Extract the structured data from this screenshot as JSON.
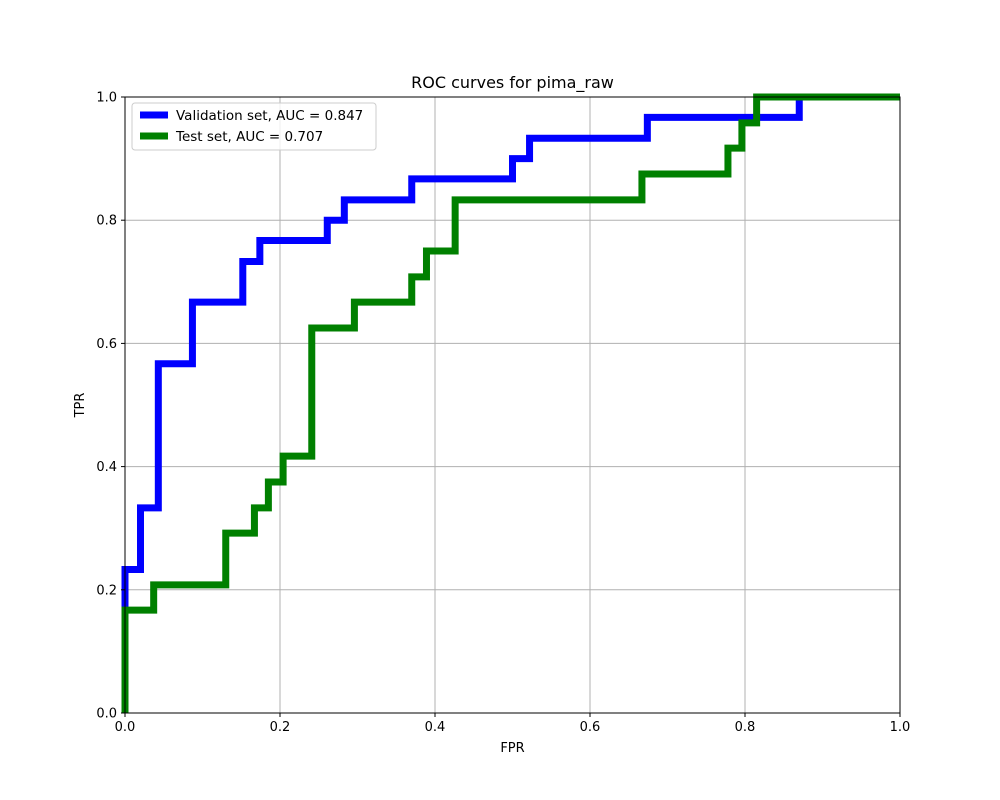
{
  "chart_data": {
    "type": "line",
    "title": "ROC curves for pima_raw",
    "xlabel": "FPR",
    "ylabel": "TPR",
    "xlim": [
      0,
      1
    ],
    "ylim": [
      0,
      1
    ],
    "xticks": [
      "0.0",
      "0.2",
      "0.4",
      "0.6",
      "0.8",
      "1.0"
    ],
    "yticks": [
      "0.0",
      "0.2",
      "0.4",
      "0.6",
      "0.8",
      "1.0"
    ],
    "grid": true,
    "legend_position": "top-left",
    "series": [
      {
        "name": "Validation set, AUC = 0.847",
        "color": "#0000ff",
        "x": [
          0.0,
          0.0,
          0.02,
          0.02,
          0.043,
          0.043,
          0.087,
          0.087,
          0.152,
          0.152,
          0.174,
          0.174,
          0.261,
          0.261,
          0.283,
          0.283,
          0.37,
          0.37,
          0.5,
          0.5,
          0.522,
          0.522,
          0.674,
          0.674,
          0.87,
          0.87,
          1.0
        ],
        "y": [
          0.0,
          0.233,
          0.233,
          0.333,
          0.333,
          0.567,
          0.567,
          0.667,
          0.667,
          0.733,
          0.733,
          0.767,
          0.767,
          0.8,
          0.8,
          0.833,
          0.833,
          0.867,
          0.867,
          0.9,
          0.9,
          0.933,
          0.933,
          0.967,
          0.967,
          1.0,
          1.0
        ]
      },
      {
        "name": "Test set, AUC = 0.707",
        "color": "#008000",
        "x": [
          0.0,
          0.0,
          0.037,
          0.037,
          0.13,
          0.13,
          0.167,
          0.167,
          0.185,
          0.185,
          0.204,
          0.204,
          0.241,
          0.241,
          0.296,
          0.296,
          0.37,
          0.37,
          0.389,
          0.389,
          0.426,
          0.426,
          0.667,
          0.667,
          0.778,
          0.778,
          0.796,
          0.796,
          0.815,
          0.815,
          1.0
        ],
        "y": [
          0.0,
          0.167,
          0.167,
          0.208,
          0.208,
          0.292,
          0.292,
          0.333,
          0.333,
          0.375,
          0.375,
          0.417,
          0.417,
          0.625,
          0.625,
          0.667,
          0.667,
          0.708,
          0.708,
          0.75,
          0.75,
          0.833,
          0.833,
          0.875,
          0.875,
          0.917,
          0.917,
          0.958,
          0.958,
          1.0,
          1.0
        ]
      }
    ]
  }
}
